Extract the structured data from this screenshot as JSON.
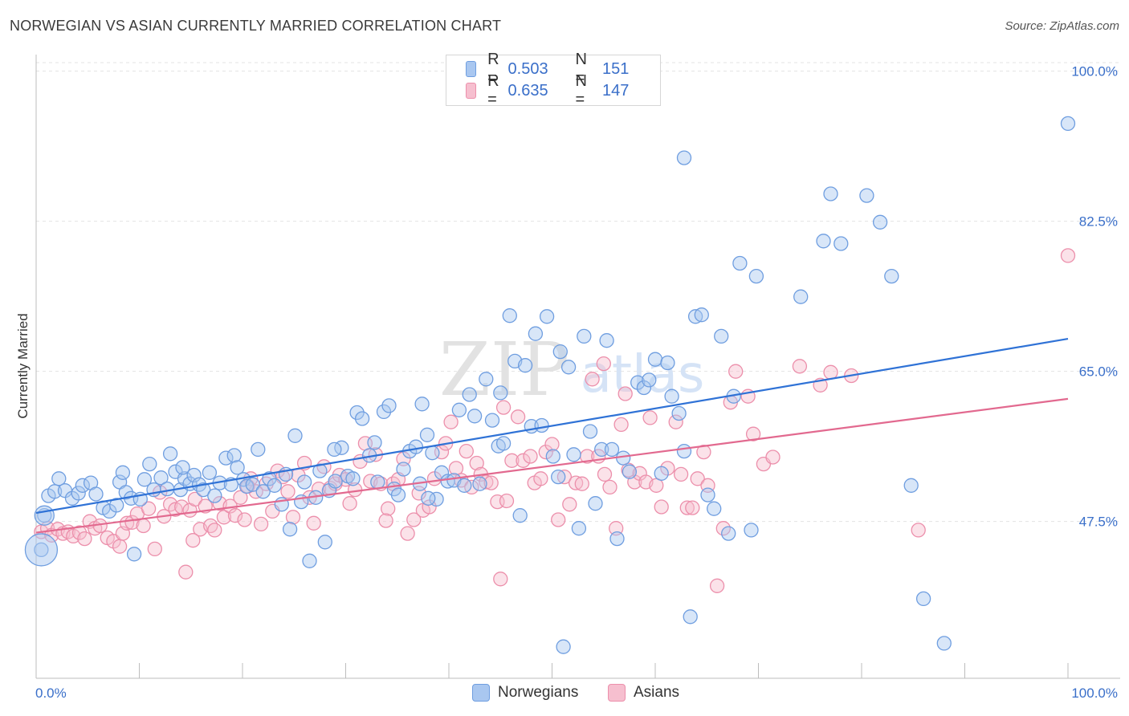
{
  "title": "NORWEGIAN VS ASIAN CURRENTLY MARRIED CORRELATION CHART",
  "source": "Source: ZipAtlas.com",
  "watermark": {
    "zip": "ZIP",
    "atlas": "atlas"
  },
  "legend": {
    "rows": [
      {
        "r_label": "R =",
        "r_value": "0.503",
        "n_label": "N =",
        "n_value": "151"
      },
      {
        "r_label": "R =",
        "r_value": "0.635",
        "n_label": "N =",
        "n_value": "147"
      }
    ]
  },
  "bottom_legend": {
    "series1": "Norwegians",
    "series2": "Asians"
  },
  "colors": {
    "blue_fill": "#a9c7f0",
    "blue_stroke": "#6f9ee0",
    "blue_line": "#2f72d6",
    "pink_fill": "#f6bfcf",
    "pink_stroke": "#ec8fab",
    "pink_line": "#e2698f",
    "tick_label": "#3a6fc9",
    "grid": "#e3e3e3"
  },
  "chart_data": {
    "type": "scatter",
    "title": "NORWEGIAN VS ASIAN CURRENTLY MARRIED CORRELATION CHART",
    "xlabel": "",
    "ylabel": "Currently Married",
    "xlim": [
      0,
      100
    ],
    "ylim": [
      31,
      101
    ],
    "x_tick_labels": [
      "0.0%",
      "100.0%"
    ],
    "y_ticks": [
      47.5,
      65.0,
      82.5,
      100.0
    ],
    "y_tick_labels": [
      "47.5%",
      "65.0%",
      "82.5%",
      "100.0%"
    ],
    "grid": true,
    "series": [
      {
        "name": "Norwegians",
        "R": 0.503,
        "N": 151,
        "trend": {
          "x": [
            0,
            100
          ],
          "y": [
            48.5,
            68.8
          ]
        },
        "points": [
          [
            0.5,
            44.2
          ],
          [
            0.8,
            48.2
          ],
          [
            1.2,
            50.5
          ],
          [
            1.8,
            51.0
          ],
          [
            2.2,
            52.5
          ],
          [
            2.8,
            51.1
          ],
          [
            3.5,
            50.2
          ],
          [
            4.1,
            50.8
          ],
          [
            4.5,
            51.7
          ],
          [
            5.3,
            52.0
          ],
          [
            5.8,
            50.7
          ],
          [
            6.5,
            49.1
          ],
          [
            7.1,
            48.7
          ],
          [
            7.8,
            49.4
          ],
          [
            8.1,
            52.1
          ],
          [
            8.7,
            50.9
          ],
          [
            9.2,
            50.2
          ],
          [
            9.5,
            43.7
          ],
          [
            10.1,
            50.1
          ],
          [
            10.5,
            52.4
          ],
          [
            11.0,
            54.2
          ],
          [
            11.4,
            51.2
          ],
          [
            12.1,
            52.6
          ],
          [
            12.7,
            51.3
          ],
          [
            13.0,
            55.4
          ],
          [
            13.5,
            53.3
          ],
          [
            14.0,
            51.2
          ],
          [
            14.4,
            52.5
          ],
          [
            14.9,
            51.9
          ],
          [
            15.3,
            52.9
          ],
          [
            15.8,
            51.8
          ],
          [
            16.2,
            51.2
          ],
          [
            16.8,
            53.2
          ],
          [
            17.3,
            50.5
          ],
          [
            17.8,
            52.0
          ],
          [
            18.4,
            54.9
          ],
          [
            18.9,
            51.8
          ],
          [
            19.2,
            55.2
          ],
          [
            19.5,
            53.8
          ],
          [
            20.1,
            52.4
          ],
          [
            20.4,
            51.6
          ],
          [
            21.0,
            51.8
          ],
          [
            21.5,
            55.9
          ],
          [
            22.0,
            51.0
          ],
          [
            22.6,
            52.5
          ],
          [
            23.1,
            51.7
          ],
          [
            23.8,
            49.5
          ],
          [
            24.2,
            53.0
          ],
          [
            24.6,
            46.6
          ],
          [
            25.1,
            57.5
          ],
          [
            25.7,
            49.8
          ],
          [
            26.0,
            52.1
          ],
          [
            26.5,
            42.9
          ],
          [
            27.1,
            50.3
          ],
          [
            27.5,
            53.4
          ],
          [
            28.0,
            45.1
          ],
          [
            28.4,
            51.1
          ],
          [
            29.0,
            52.2
          ],
          [
            29.6,
            56.1
          ],
          [
            30.2,
            52.8
          ],
          [
            30.7,
            52.5
          ],
          [
            31.1,
            60.2
          ],
          [
            31.6,
            59.5
          ],
          [
            32.3,
            55.2
          ],
          [
            32.8,
            56.7
          ],
          [
            33.1,
            52.1
          ],
          [
            33.7,
            60.3
          ],
          [
            34.2,
            61.0
          ],
          [
            34.7,
            51.3
          ],
          [
            35.1,
            50.6
          ],
          [
            35.6,
            53.6
          ],
          [
            36.2,
            55.7
          ],
          [
            36.8,
            56.2
          ],
          [
            37.4,
            61.2
          ],
          [
            37.9,
            57.6
          ],
          [
            38.4,
            55.5
          ],
          [
            38.8,
            50.1
          ],
          [
            39.3,
            53.2
          ],
          [
            39.9,
            52.2
          ],
          [
            40.5,
            52.3
          ],
          [
            41.0,
            60.5
          ],
          [
            41.5,
            51.7
          ],
          [
            42.0,
            62.3
          ],
          [
            42.5,
            59.8
          ],
          [
            43.0,
            51.9
          ],
          [
            43.6,
            64.1
          ],
          [
            44.2,
            59.3
          ],
          [
            44.8,
            56.3
          ],
          [
            45.3,
            56.6
          ],
          [
            45.9,
            71.5
          ],
          [
            46.4,
            66.2
          ],
          [
            46.9,
            48.2
          ],
          [
            47.4,
            65.7
          ],
          [
            48.0,
            58.6
          ],
          [
            48.4,
            69.4
          ],
          [
            49.0,
            58.7
          ],
          [
            49.5,
            71.4
          ],
          [
            50.1,
            55.1
          ],
          [
            50.6,
            52.7
          ],
          [
            51.1,
            32.9
          ],
          [
            51.6,
            65.5
          ],
          [
            52.1,
            55.3
          ],
          [
            52.6,
            46.7
          ],
          [
            53.1,
            69.1
          ],
          [
            53.7,
            58.0
          ],
          [
            54.2,
            49.6
          ],
          [
            54.8,
            55.9
          ],
          [
            55.3,
            68.6
          ],
          [
            55.8,
            55.9
          ],
          [
            56.3,
            45.5
          ],
          [
            56.9,
            54.9
          ],
          [
            57.5,
            53.3
          ],
          [
            58.3,
            63.7
          ],
          [
            58.9,
            63.1
          ],
          [
            59.4,
            64.0
          ],
          [
            60.0,
            66.4
          ],
          [
            60.6,
            53.1
          ],
          [
            61.2,
            66.0
          ],
          [
            61.6,
            62.1
          ],
          [
            62.3,
            60.1
          ],
          [
            62.8,
            55.7
          ],
          [
            63.4,
            36.4
          ],
          [
            63.9,
            71.4
          ],
          [
            64.5,
            71.6
          ],
          [
            65.1,
            50.6
          ],
          [
            65.7,
            49.0
          ],
          [
            66.4,
            69.1
          ],
          [
            67.1,
            46.1
          ],
          [
            67.6,
            62.1
          ],
          [
            68.2,
            77.6
          ],
          [
            69.3,
            46.5
          ],
          [
            69.8,
            76.1
          ],
          [
            74.1,
            73.7
          ],
          [
            76.3,
            80.2
          ],
          [
            77.0,
            85.7
          ],
          [
            78.0,
            79.9
          ],
          [
            80.5,
            85.5
          ],
          [
            81.8,
            82.4
          ],
          [
            82.9,
            76.1
          ],
          [
            84.8,
            51.7
          ],
          [
            86.0,
            38.5
          ],
          [
            88.0,
            33.3
          ],
          [
            100.0,
            93.9
          ],
          [
            62.8,
            89.9
          ],
          [
            45.0,
            62.5
          ],
          [
            38.0,
            50.2
          ],
          [
            14.2,
            53.8
          ],
          [
            28.9,
            55.9
          ],
          [
            50.8,
            67.3
          ],
          [
            37.2,
            51.9
          ],
          [
            8.4,
            53.2
          ]
        ]
      },
      {
        "name": "Asians",
        "R": 0.635,
        "N": 147,
        "trend": {
          "x": [
            0,
            100
          ],
          "y": [
            46.2,
            61.8
          ]
        },
        "points": [
          [
            0.5,
            46.3
          ],
          [
            1.1,
            46.7
          ],
          [
            1.5,
            45.9
          ],
          [
            2.1,
            46.6
          ],
          [
            2.6,
            46.1
          ],
          [
            3.1,
            46.3
          ],
          [
            3.6,
            45.8
          ],
          [
            4.2,
            46.2
          ],
          [
            4.7,
            45.5
          ],
          [
            5.2,
            47.5
          ],
          [
            5.7,
            46.7
          ],
          [
            6.2,
            47.0
          ],
          [
            6.9,
            45.6
          ],
          [
            7.5,
            45.2
          ],
          [
            8.1,
            44.6
          ],
          [
            8.4,
            46.1
          ],
          [
            8.8,
            47.3
          ],
          [
            9.3,
            47.4
          ],
          [
            9.8,
            48.4
          ],
          [
            10.4,
            47.0
          ],
          [
            10.9,
            49.0
          ],
          [
            11.5,
            44.3
          ],
          [
            12.0,
            50.9
          ],
          [
            12.4,
            48.1
          ],
          [
            13.0,
            49.5
          ],
          [
            13.5,
            48.9
          ],
          [
            14.1,
            49.2
          ],
          [
            14.5,
            41.6
          ],
          [
            14.9,
            48.8
          ],
          [
            15.4,
            50.1
          ],
          [
            15.9,
            46.6
          ],
          [
            16.4,
            49.3
          ],
          [
            16.9,
            47.0
          ],
          [
            17.3,
            46.5
          ],
          [
            17.8,
            49.6
          ],
          [
            18.2,
            48.0
          ],
          [
            18.8,
            49.3
          ],
          [
            19.3,
            48.2
          ],
          [
            19.8,
            50.3
          ],
          [
            20.2,
            47.7
          ],
          [
            20.8,
            52.5
          ],
          [
            21.3,
            51.0
          ],
          [
            21.8,
            47.2
          ],
          [
            22.3,
            51.9
          ],
          [
            22.9,
            48.7
          ],
          [
            23.4,
            53.4
          ],
          [
            23.9,
            52.7
          ],
          [
            24.4,
            51.0
          ],
          [
            24.9,
            48.0
          ],
          [
            25.4,
            52.9
          ],
          [
            26.0,
            54.3
          ],
          [
            26.5,
            50.3
          ],
          [
            26.9,
            47.3
          ],
          [
            27.4,
            51.3
          ],
          [
            27.9,
            53.9
          ],
          [
            28.5,
            51.4
          ],
          [
            29.0,
            51.9
          ],
          [
            29.4,
            52.9
          ],
          [
            30.0,
            52.4
          ],
          [
            30.4,
            49.6
          ],
          [
            30.9,
            51.2
          ],
          [
            31.4,
            54.5
          ],
          [
            31.9,
            56.6
          ],
          [
            32.4,
            52.2
          ],
          [
            32.9,
            55.3
          ],
          [
            33.4,
            51.9
          ],
          [
            34.1,
            49.0
          ],
          [
            34.6,
            51.9
          ],
          [
            35.1,
            52.4
          ],
          [
            35.6,
            54.8
          ],
          [
            36.0,
            46.1
          ],
          [
            36.6,
            47.7
          ],
          [
            37.1,
            50.8
          ],
          [
            37.5,
            48.8
          ],
          [
            38.1,
            49.2
          ],
          [
            38.6,
            52.5
          ],
          [
            39.3,
            55.6
          ],
          [
            39.7,
            56.6
          ],
          [
            40.2,
            59.1
          ],
          [
            40.7,
            53.7
          ],
          [
            41.2,
            52.3
          ],
          [
            41.7,
            55.7
          ],
          [
            42.2,
            51.5
          ],
          [
            42.7,
            54.3
          ],
          [
            43.1,
            53.0
          ],
          [
            43.6,
            52.1
          ],
          [
            44.1,
            52.0
          ],
          [
            44.7,
            49.8
          ],
          [
            45.3,
            60.8
          ],
          [
            45.6,
            49.9
          ],
          [
            46.1,
            54.6
          ],
          [
            46.7,
            59.7
          ],
          [
            47.2,
            54.6
          ],
          [
            47.9,
            55.1
          ],
          [
            48.3,
            52.0
          ],
          [
            48.9,
            52.5
          ],
          [
            49.4,
            55.6
          ],
          [
            50.0,
            56.5
          ],
          [
            50.6,
            47.7
          ],
          [
            51.2,
            52.7
          ],
          [
            51.7,
            49.5
          ],
          [
            52.3,
            52.0
          ],
          [
            52.9,
            51.9
          ],
          [
            53.4,
            55.1
          ],
          [
            53.9,
            64.1
          ],
          [
            54.5,
            55.1
          ],
          [
            55.1,
            53.0
          ],
          [
            55.6,
            51.5
          ],
          [
            56.2,
            46.7
          ],
          [
            56.7,
            58.8
          ],
          [
            57.4,
            53.5
          ],
          [
            58.0,
            52.1
          ],
          [
            58.5,
            53.1
          ],
          [
            59.1,
            52.1
          ],
          [
            59.5,
            59.6
          ],
          [
            60.1,
            51.7
          ],
          [
            60.6,
            49.2
          ],
          [
            61.2,
            53.7
          ],
          [
            62.0,
            59.1
          ],
          [
            62.5,
            53.0
          ],
          [
            63.1,
            49.1
          ],
          [
            63.6,
            49.1
          ],
          [
            64.1,
            52.5
          ],
          [
            64.7,
            55.6
          ],
          [
            65.1,
            51.7
          ],
          [
            66.0,
            40.0
          ],
          [
            66.6,
            46.7
          ],
          [
            67.3,
            61.4
          ],
          [
            67.8,
            65.0
          ],
          [
            69.0,
            62.1
          ],
          [
            69.5,
            57.7
          ],
          [
            70.5,
            54.2
          ],
          [
            71.4,
            55.0
          ],
          [
            74.0,
            65.6
          ],
          [
            76.0,
            63.4
          ],
          [
            77.0,
            64.9
          ],
          [
            79.0,
            64.5
          ],
          [
            85.5,
            46.5
          ],
          [
            100.0,
            78.5
          ],
          [
            45.0,
            40.8
          ],
          [
            15.2,
            45.3
          ],
          [
            55.0,
            65.9
          ],
          [
            57.1,
            62.4
          ],
          [
            33.9,
            47.6
          ],
          [
            20.5,
            51.6
          ]
        ]
      }
    ]
  }
}
